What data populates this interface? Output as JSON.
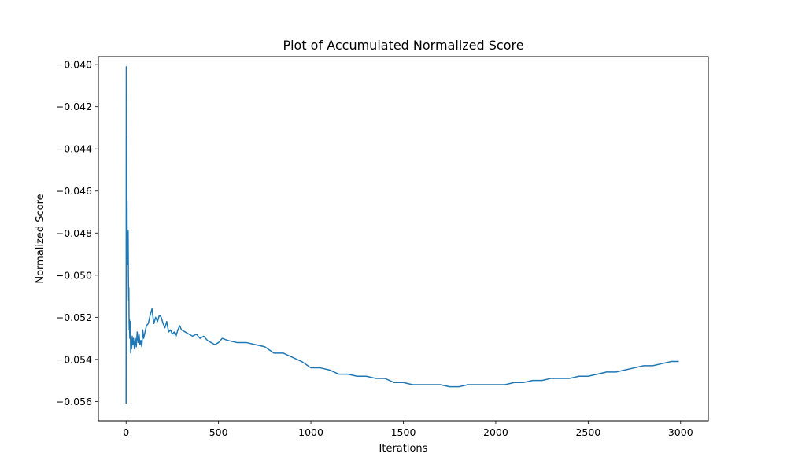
{
  "chart_data": {
    "type": "line",
    "title": "Plot of Accumulated Normalized Score",
    "xlabel": "Iterations",
    "ylabel": "Normalized Score",
    "xlim": [
      -150,
      3150
    ],
    "ylim": [
      -0.05692,
      -0.03962
    ],
    "xticks": [
      0,
      500,
      1000,
      1500,
      2000,
      2500,
      3000
    ],
    "xtick_labels": [
      "0",
      "500",
      "1000",
      "1500",
      "2000",
      "2500",
      "3000"
    ],
    "yticks": [
      -0.04,
      -0.042,
      -0.044,
      -0.046,
      -0.048,
      -0.05,
      -0.052,
      -0.054,
      -0.056
    ],
    "ytick_labels": [
      "−0.040",
      "−0.042",
      "−0.044",
      "−0.046",
      "−0.048",
      "−0.050",
      "−0.052",
      "−0.054",
      "−0.056"
    ],
    "grid": false,
    "series": [
      {
        "color": "#1f77b4",
        "x": [
          0,
          1,
          2,
          3,
          4,
          5,
          6,
          7,
          8,
          9,
          10,
          11,
          12,
          13,
          14,
          15,
          16,
          17,
          18,
          20,
          22,
          25,
          28,
          30,
          33,
          36,
          40,
          45,
          50,
          55,
          60,
          65,
          70,
          75,
          80,
          85,
          90,
          95,
          100,
          110,
          120,
          130,
          140,
          150,
          160,
          170,
          180,
          190,
          200,
          210,
          220,
          230,
          240,
          250,
          260,
          270,
          280,
          290,
          300,
          320,
          340,
          360,
          380,
          400,
          420,
          440,
          460,
          480,
          500,
          520,
          550,
          600,
          650,
          700,
          750,
          800,
          850,
          900,
          950,
          1000,
          1050,
          1100,
          1150,
          1200,
          1250,
          1300,
          1350,
          1400,
          1450,
          1500,
          1550,
          1600,
          1650,
          1700,
          1750,
          1800,
          1850,
          1900,
          1950,
          2000,
          2050,
          2100,
          2150,
          2200,
          2250,
          2300,
          2350,
          2400,
          2450,
          2500,
          2550,
          2600,
          2650,
          2700,
          2750,
          2800,
          2850,
          2900,
          2950,
          2990
        ],
        "y": [
          -0.0561,
          -0.0401,
          -0.0445,
          -0.0434,
          -0.0478,
          -0.0465,
          -0.0492,
          -0.048,
          -0.0495,
          -0.0485,
          -0.049,
          -0.0479,
          -0.0494,
          -0.0505,
          -0.0512,
          -0.0506,
          -0.052,
          -0.0526,
          -0.0521,
          -0.053,
          -0.0522,
          -0.0537,
          -0.0531,
          -0.0535,
          -0.0529,
          -0.0533,
          -0.053,
          -0.0535,
          -0.053,
          -0.0534,
          -0.0527,
          -0.0532,
          -0.0528,
          -0.0533,
          -0.0531,
          -0.0534,
          -0.0526,
          -0.053,
          -0.0528,
          -0.0524,
          -0.0523,
          -0.0519,
          -0.0516,
          -0.0523,
          -0.052,
          -0.0522,
          -0.0519,
          -0.052,
          -0.0523,
          -0.0525,
          -0.0522,
          -0.0527,
          -0.0526,
          -0.0528,
          -0.0527,
          -0.0529,
          -0.0526,
          -0.0524,
          -0.0526,
          -0.0527,
          -0.0528,
          -0.0529,
          -0.0528,
          -0.053,
          -0.0529,
          -0.0531,
          -0.0532,
          -0.0533,
          -0.0532,
          -0.053,
          -0.0531,
          -0.0532,
          -0.0532,
          -0.0533,
          -0.0534,
          -0.0537,
          -0.0537,
          -0.0539,
          -0.0541,
          -0.0544,
          -0.0544,
          -0.0545,
          -0.0547,
          -0.0547,
          -0.0548,
          -0.0548,
          -0.0549,
          -0.0549,
          -0.0551,
          -0.0551,
          -0.0552,
          -0.0552,
          -0.0552,
          -0.0552,
          -0.0553,
          -0.0553,
          -0.0552,
          -0.0552,
          -0.0552,
          -0.0552,
          -0.0552,
          -0.0551,
          -0.0551,
          -0.055,
          -0.055,
          -0.0549,
          -0.0549,
          -0.0549,
          -0.0548,
          -0.0548,
          -0.0547,
          -0.0546,
          -0.0546,
          -0.0545,
          -0.0544,
          -0.0543,
          -0.0543,
          -0.0542,
          -0.0541,
          -0.0541
        ]
      }
    ]
  }
}
